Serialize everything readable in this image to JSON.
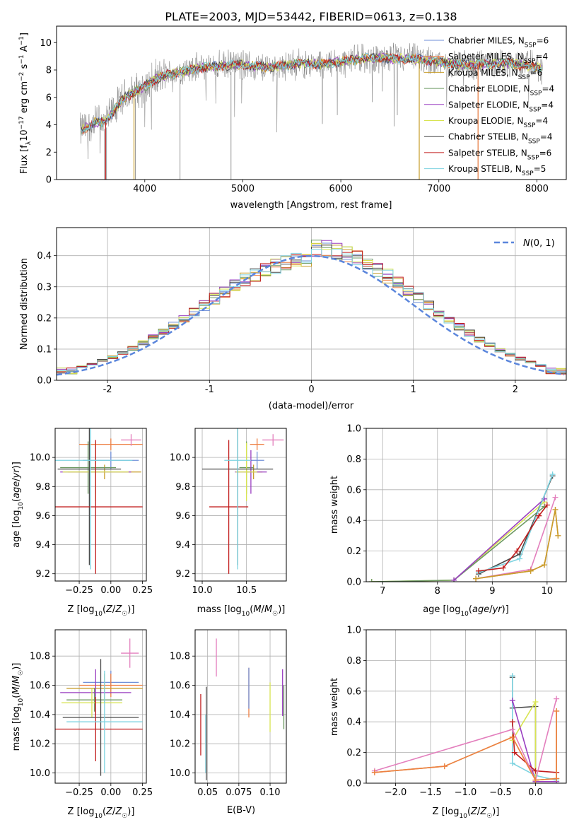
{
  "title": "PLATE=2003, MJD=53442, FIBERID=0613, z=0.138",
  "colors": {
    "Chabrier MILES": "#6f8fd8",
    "Salpeter MILES": "#ee7f42",
    "Kroupa MILES": "#c89e2b",
    "Chabrier ELODIE": "#6e9a63",
    "Salpeter ELODIE": "#9a3fc1",
    "Kroupa ELODIE": "#d8e451",
    "Chabrier STELIB": "#4a4a4a",
    "Salpeter STELIB": "#c21e1e",
    "Kroupa STELIB": "#7dd3e0",
    "pink": "#e37fbd",
    "data": "#808080",
    "normal": "#5b86dc",
    "grid": "#b0b0b0"
  },
  "chart_data": [
    {
      "type": "line",
      "id": "spectrum",
      "xlabel": "wavelength [Angstrom, rest frame]",
      "ylabel": "Flux [f_λ 10^-17 erg cm^-2 s^-1 A^-1]",
      "xlim": [
        3100,
        8300
      ],
      "ylim": [
        0,
        11.2
      ],
      "xticks": [
        4000,
        5000,
        6000,
        7000,
        8000
      ],
      "yticks": [
        0,
        2,
        4,
        6,
        8,
        10
      ],
      "legend_position": "upper right",
      "legend": [
        {
          "name": "Chabrier MILES",
          "nssp": "6"
        },
        {
          "name": "Salpeter MILES",
          "nssp": "4"
        },
        {
          "name": "Kroupa MILES",
          "nssp": "6"
        },
        {
          "name": "Chabrier ELODIE",
          "nssp": "4"
        },
        {
          "name": "Salpeter ELODIE",
          "nssp": "4"
        },
        {
          "name": "Kroupa ELODIE",
          "nssp": "4"
        },
        {
          "name": "Chabrier STELIB",
          "nssp": "4"
        },
        {
          "name": "Salpeter STELIB",
          "nssp": "6"
        },
        {
          "name": "Kroupa STELIB",
          "nssp": "5"
        }
      ],
      "continuum": [
        [
          3350,
          3.6
        ],
        [
          3500,
          4.2
        ],
        [
          3600,
          4.2
        ],
        [
          3700,
          5.2
        ],
        [
          3800,
          6.0
        ],
        [
          3900,
          6.4
        ],
        [
          4000,
          6.8
        ],
        [
          4100,
          7.3
        ],
        [
          4200,
          7.6
        ],
        [
          4400,
          7.9
        ],
        [
          4600,
          8.2
        ],
        [
          4800,
          8.3
        ],
        [
          5000,
          8.4
        ],
        [
          5200,
          8.2
        ],
        [
          5400,
          8.3
        ],
        [
          5600,
          8.5
        ],
        [
          5800,
          8.4
        ],
        [
          6000,
          8.6
        ],
        [
          6200,
          8.8
        ],
        [
          6400,
          8.9
        ],
        [
          6600,
          8.8
        ],
        [
          6800,
          8.8
        ],
        [
          7000,
          8.6
        ],
        [
          7200,
          8.4
        ],
        [
          7400,
          8.4
        ],
        [
          7700,
          8.5
        ],
        [
          8000,
          8.2
        ],
        [
          8050,
          8.1
        ]
      ],
      "dips": [
        3590,
        3610,
        3905,
        4360,
        4880,
        6800,
        7400
      ]
    },
    {
      "type": "bar",
      "id": "residuals",
      "xlabel": "(data-model)/error",
      "ylabel": "Normed distribution",
      "xlim": [
        -2.5,
        2.5
      ],
      "ylim": [
        0,
        0.49
      ],
      "xticks": [
        -2,
        -1,
        0,
        1,
        2
      ],
      "yticks": [
        0.0,
        0.1,
        0.2,
        0.3,
        0.4
      ],
      "bin_width": 0.1,
      "legend": "N(0,1)",
      "legend_position": "upper right",
      "curve": {
        "name": "N(0,1)",
        "mean": 0,
        "sigma": 1
      }
    },
    {
      "type": "scatter",
      "id": "age_Z",
      "xlabel": "Z [log10(Z/Z☉)]",
      "ylabel": "age [log10(age/yr)]",
      "xlim": [
        -0.44,
        0.28
      ],
      "ylim": [
        9.15,
        10.2
      ],
      "xticks": [
        -0.25,
        0.0,
        0.25
      ],
      "yticks": [
        9.2,
        9.4,
        9.6,
        9.8,
        10.0
      ],
      "points": [
        {
          "model": "Chabrier MILES",
          "x": 0.0,
          "xerr": 0.22,
          "y": 9.98,
          "yerr": 0.06
        },
        {
          "model": "Salpeter MILES",
          "x": 0.0,
          "xerr": 0.25,
          "y": 10.09,
          "yerr": 0.04
        },
        {
          "model": "Kroupa MILES",
          "x": -0.05,
          "xerr": 0.29,
          "y": 9.9,
          "yerr": 0.05
        },
        {
          "model": "Chabrier ELODIE",
          "x": -0.18,
          "xerr": 0.22,
          "y": 9.93,
          "yerr": 0.18
        },
        {
          "model": "Salpeter ELODIE",
          "x": -0.12,
          "xerr": 0.28,
          "y": 9.9,
          "yerr": 0.15
        },
        {
          "model": "Kroupa ELODIE",
          "x": -0.12,
          "xerr": 0.26,
          "y": 9.9,
          "yerr": 0.2
        },
        {
          "model": "Chabrier STELIB",
          "x": -0.17,
          "xerr": 0.25,
          "y": 9.92,
          "yerr": 0.66
        },
        {
          "model": "Salpeter STELIB",
          "x": -0.12,
          "xerr": 0.37,
          "y": 9.66,
          "yerr": 0.46
        },
        {
          "model": "Kroupa STELIB",
          "x": -0.16,
          "xerr": 0.33,
          "y": 9.98,
          "yerr": 0.75
        },
        {
          "model": "pink",
          "x": 0.16,
          "xerr": 0.08,
          "y": 10.12,
          "yerr": 0.04
        }
      ]
    },
    {
      "type": "scatter",
      "id": "age_mass",
      "xlabel": "mass [log10(M/M☉)]",
      "ylabel": "",
      "xlim": [
        9.92,
        10.95
      ],
      "ylim": [
        9.15,
        10.2
      ],
      "xticks": [
        10.0,
        10.5
      ],
      "yticks": [
        9.2,
        9.4,
        9.6,
        9.8,
        10.0
      ],
      "points": [
        {
          "model": "Chabrier MILES",
          "x": 10.62,
          "xerr": 0.08,
          "y": 9.98,
          "yerr": 0.06
        },
        {
          "model": "Salpeter MILES",
          "x": 10.62,
          "xerr": 0.08,
          "y": 10.09,
          "yerr": 0.04
        },
        {
          "model": "Kroupa MILES",
          "x": 10.58,
          "xerr": 0.1,
          "y": 9.9,
          "yerr": 0.05
        },
        {
          "model": "Chabrier ELODIE",
          "x": 10.5,
          "xerr": 0.08,
          "y": 9.93,
          "yerr": 0.18
        },
        {
          "model": "Salpeter ELODIE",
          "x": 10.55,
          "xerr": 0.18,
          "y": 9.9,
          "yerr": 0.15
        },
        {
          "model": "Kroupa ELODIE",
          "x": 10.5,
          "xerr": 0.12,
          "y": 9.9,
          "yerr": 0.2
        },
        {
          "model": "Chabrier STELIB",
          "x": 10.4,
          "xerr": 0.4,
          "y": 9.92,
          "yerr": 0.66
        },
        {
          "model": "Salpeter STELIB",
          "x": 10.3,
          "xerr": 0.22,
          "y": 9.66,
          "yerr": 0.46
        },
        {
          "model": "Kroupa STELIB",
          "x": 10.4,
          "xerr": 0.15,
          "y": 9.98,
          "yerr": 0.75
        },
        {
          "model": "pink",
          "x": 10.8,
          "xerr": 0.12,
          "y": 10.12,
          "yerr": 0.04
        }
      ]
    },
    {
      "type": "line",
      "id": "weight_age",
      "xlabel": "age [log10(age/yr)]",
      "ylabel": "mass weight",
      "xlim": [
        6.7,
        10.35
      ],
      "ylim": [
        0,
        1.0
      ],
      "xticks": [
        7,
        8,
        9,
        10
      ],
      "yticks": [
        0.0,
        0.2,
        0.4,
        0.6,
        0.8,
        1.0
      ],
      "series": [
        {
          "model": "Kroupa ELODIE",
          "x": [
            6.8,
            8.3,
            9.95
          ],
          "y": [
            0.0,
            0.01,
            0.52
          ]
        },
        {
          "model": "Chabrier ELODIE",
          "x": [
            6.8,
            8.3,
            9.95
          ],
          "y": [
            0.0,
            0.01,
            0.49
          ]
        },
        {
          "model": "Salpeter ELODIE",
          "x": [
            8.3,
            9.95
          ],
          "y": [
            0.01,
            0.54
          ]
        },
        {
          "model": "Chabrier STELIB",
          "x": [
            8.75,
            9.5,
            10.1
          ],
          "y": [
            0.05,
            0.18,
            0.69
          ]
        },
        {
          "model": "Kroupa STELIB",
          "x": [
            8.75,
            9.5,
            10.1
          ],
          "y": [
            0.06,
            0.15,
            0.7
          ]
        },
        {
          "model": "Salpeter STELIB",
          "x": [
            8.75,
            9.2,
            9.45,
            9.85,
            10.0
          ],
          "y": [
            0.07,
            0.09,
            0.2,
            0.43,
            0.5
          ]
        },
        {
          "model": "pink",
          "x": [
            8.7,
            9.7,
            10.15
          ],
          "y": [
            0.02,
            0.08,
            0.55
          ]
        },
        {
          "model": "Salpeter MILES",
          "x": [
            8.7,
            9.7,
            9.95,
            10.15,
            10.2
          ],
          "y": [
            0.02,
            0.07,
            0.11,
            0.47,
            0.3
          ]
        },
        {
          "model": "Kroupa MILES",
          "x": [
            8.7,
            9.7,
            9.95,
            10.15,
            10.2
          ],
          "y": [
            0.02,
            0.07,
            0.11,
            0.47,
            0.3
          ]
        }
      ]
    },
    {
      "type": "scatter",
      "id": "mass_Z",
      "xlabel": "Z [log10(Z/Z☉)]",
      "ylabel": "mass [log10(M/M☉)]",
      "xlim": [
        -0.44,
        0.28
      ],
      "ylim": [
        9.93,
        10.98
      ],
      "xticks": [
        -0.25,
        0.0,
        0.25
      ],
      "yticks": [
        10.0,
        10.2,
        10.4,
        10.6,
        10.8
      ],
      "points": [
        {
          "model": "Chabrier MILES",
          "x": 0.0,
          "xerr": 0.22,
          "y": 10.62,
          "yerr": 0.08
        },
        {
          "model": "Salpeter MILES",
          "x": 0.0,
          "xerr": 0.25,
          "y": 10.6,
          "yerr": 0.08
        },
        {
          "model": "Kroupa MILES",
          "x": -0.05,
          "xerr": 0.3,
          "y": 10.58,
          "yerr": 0.1
        },
        {
          "model": "Chabrier ELODIE",
          "x": -0.13,
          "xerr": 0.22,
          "y": 10.5,
          "yerr": 0.08
        },
        {
          "model": "Salpeter ELODIE",
          "x": -0.12,
          "xerr": 0.28,
          "y": 10.55,
          "yerr": 0.16
        },
        {
          "model": "Kroupa ELODIE",
          "x": -0.15,
          "xerr": 0.24,
          "y": 10.48,
          "yerr": 0.1
        },
        {
          "model": "Chabrier STELIB",
          "x": -0.08,
          "xerr": 0.3,
          "y": 10.38,
          "yerr": 0.4
        },
        {
          "model": "Salpeter STELIB",
          "x": -0.12,
          "xerr": 0.37,
          "y": 10.3,
          "yerr": 0.22
        },
        {
          "model": "Kroupa STELIB",
          "x": -0.05,
          "xerr": 0.3,
          "y": 10.35,
          "yerr": 0.35
        },
        {
          "model": "pink",
          "x": 0.15,
          "xerr": 0.07,
          "y": 10.82,
          "yerr": 0.1
        }
      ]
    },
    {
      "type": "scatter",
      "id": "mass_ebv",
      "xlabel": "E(B-V)",
      "ylabel": "",
      "xlim": [
        0.04,
        0.113
      ],
      "ylim": [
        9.93,
        10.98
      ],
      "xticks": [
        0.05,
        0.075,
        0.1
      ],
      "yticks": [
        10.0,
        10.2,
        10.4,
        10.6,
        10.8
      ],
      "points": [
        {
          "model": "Salpeter STELIB",
          "x": 0.0445,
          "y": 10.33,
          "yerr": 0.21
        },
        {
          "model": "Kroupa STELIB",
          "x": 0.0485,
          "y": 10.2,
          "yerr": 0.2
        },
        {
          "model": "Chabrier STELIB",
          "x": 0.049,
          "y": 10.27,
          "yerr": 0.32
        },
        {
          "model": "pink",
          "x": 0.057,
          "y": 10.79,
          "yerr": 0.13
        },
        {
          "model": "Salpeter MILES",
          "x": 0.083,
          "y": 10.55,
          "yerr": 0.17
        },
        {
          "model": "Chabrier MILES",
          "x": 0.083,
          "y": 10.58,
          "yerr": 0.14
        },
        {
          "model": "Kroupa ELODIE",
          "x": 0.1,
          "y": 10.45,
          "yerr": 0.17
        },
        {
          "model": "Salpeter ELODIE",
          "x": 0.11,
          "y": 10.55,
          "yerr": 0.16
        },
        {
          "model": "Chabrier ELODIE",
          "x": 0.111,
          "y": 10.45,
          "yerr": 0.15
        }
      ]
    },
    {
      "type": "line",
      "id": "weight_Z",
      "xlabel": "Z [log10(Z/Z☉)]",
      "ylabel": "mass weight",
      "xlim": [
        -2.42,
        0.44
      ],
      "ylim": [
        0,
        1.0
      ],
      "xticks": [
        -2.0,
        -1.5,
        -1.0,
        -0.5,
        0.0
      ],
      "yticks": [
        0.0,
        0.2,
        0.4,
        0.6,
        0.8,
        1.0
      ],
      "series": [
        {
          "model": "Chabrier STELIB",
          "x": [
            -0.33,
            -0.33,
            0.0,
            0.0
          ],
          "y": [
            0.69,
            0.49,
            0.5,
            0.05
          ]
        },
        {
          "model": "Kroupa STELIB",
          "x": [
            -0.33,
            -0.33,
            0.0,
            0.3
          ],
          "y": [
            0.7,
            0.13,
            0.05,
            0.02
          ]
        },
        {
          "model": "Kroupa ELODIE",
          "x": [
            -0.33,
            0.0,
            0.0,
            0.3
          ],
          "y": [
            0.28,
            0.53,
            0.02,
            0.03
          ]
        },
        {
          "model": "Salpeter ELODIE",
          "x": [
            -0.33,
            0.0,
            0.3
          ],
          "y": [
            0.54,
            0.01,
            0.01
          ]
        },
        {
          "model": "Salpeter STELIB",
          "x": [
            -0.33,
            -0.3,
            0.0,
            0.3
          ],
          "y": [
            0.4,
            0.2,
            0.08,
            0.07
          ]
        },
        {
          "model": "pink",
          "x": [
            -2.3,
            -0.33,
            0.0,
            0.3
          ],
          "y": [
            0.08,
            0.35,
            0.02,
            0.55
          ]
        },
        {
          "model": "Kroupa MILES",
          "x": [
            -2.3,
            -1.3,
            -0.33,
            0.0,
            0.3,
            0.3
          ],
          "y": [
            0.07,
            0.11,
            0.3,
            0.02,
            0.03,
            0.47
          ]
        },
        {
          "model": "Salpeter MILES",
          "x": [
            -2.3,
            -1.3,
            -0.33,
            0.0,
            0.3,
            0.3
          ],
          "y": [
            0.07,
            0.11,
            0.3,
            0.02,
            0.03,
            0.47
          ]
        }
      ]
    }
  ]
}
